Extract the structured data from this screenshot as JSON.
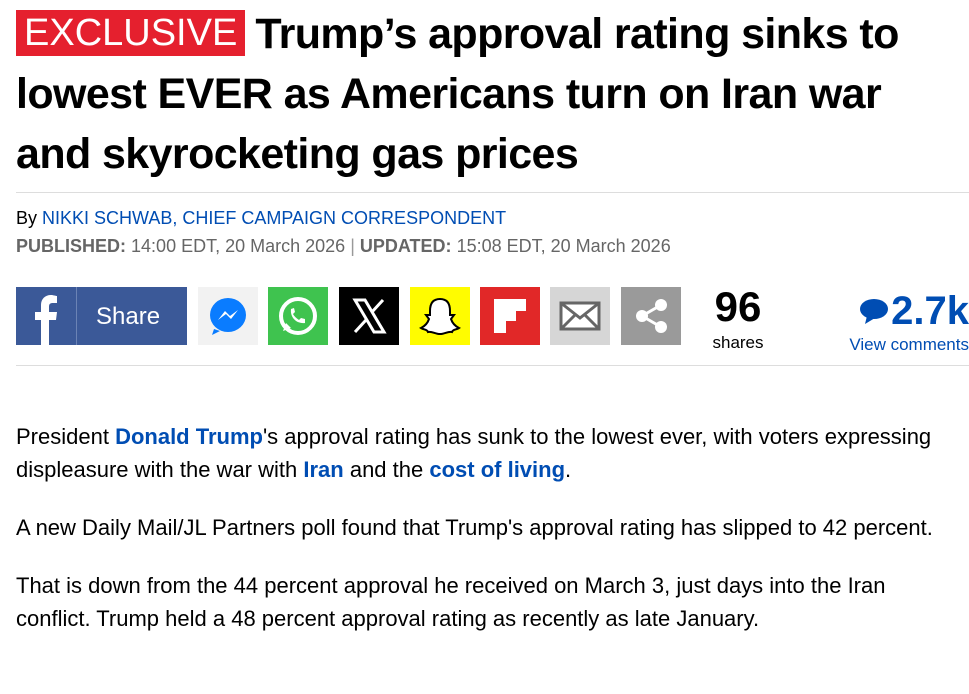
{
  "article": {
    "badge": "EXCLUSIVE",
    "title": "Trump’s approval rating sinks to lowest EVER as Americans turn on Iran war and skyrocketing gas prices",
    "byline_prefix": "By",
    "author": "NIKKI SCHWAB, CHIEF CAMPAIGN CORRESPONDENT",
    "published_label": "PUBLISHED:",
    "published": "14:00 EDT, 20 March 2026",
    "updated_label": "UPDATED:",
    "updated": "15:08 EDT, 20 March 2026",
    "share_button": "Share",
    "share_count": "96",
    "share_unit": "shares",
    "comment_count": "2.7k",
    "comment_link": "View comments",
    "paragraphs": [
      [
        {
          "text": "President "
        },
        {
          "text": "Donald Trump",
          "link": true
        },
        {
          "text": "'s approval rating has sunk to the lowest ever, with voters expressing displeasure with the war with "
        },
        {
          "text": "Iran",
          "link": true
        },
        {
          "text": " and the "
        },
        {
          "text": "cost of living",
          "link": true
        },
        {
          "text": "."
        }
      ],
      [
        {
          "text": "A new Daily Mail/JL Partners poll found that Trump's approval rating has slipped to 42 percent."
        }
      ],
      [
        {
          "text": "That is down from the 44 percent approval he received on March 3, just days into the Iran conflict. Trump held a 48 percent approval rating as recently as late January."
        }
      ]
    ]
  }
}
